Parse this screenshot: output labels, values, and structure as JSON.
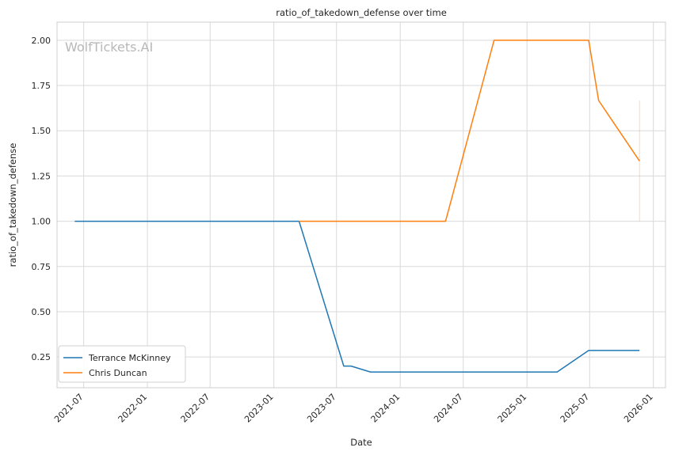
{
  "chart_data": {
    "type": "line",
    "title": "ratio_of_takedown_defense over time",
    "xlabel": "Date",
    "ylabel": "ratio_of_takedown_defense",
    "watermark": "WolfTickets.AI",
    "x_ticks": [
      "2021-07",
      "2022-01",
      "2022-07",
      "2023-01",
      "2023-07",
      "2024-01",
      "2024-07",
      "2025-01",
      "2025-07",
      "2026-01"
    ],
    "y_ticks": [
      "0.25",
      "0.50",
      "0.75",
      "1.00",
      "1.25",
      "1.50",
      "1.75",
      "2.00"
    ],
    "xlim": [
      "2021-04-15",
      "2026-02-05"
    ],
    "ylim": [
      0.08,
      2.1
    ],
    "grid": true,
    "legend_position": "lower-left",
    "series": [
      {
        "name": "Terrance McKinney",
        "color": "#1f77b4",
        "points": [
          {
            "x": "2021-06-05",
            "y": 1.0
          },
          {
            "x": "2023-03-15",
            "y": 1.0
          },
          {
            "x": "2023-07-22",
            "y": 0.2
          },
          {
            "x": "2023-08-12",
            "y": 0.2
          },
          {
            "x": "2023-10-07",
            "y": 0.167
          },
          {
            "x": "2025-03-29",
            "y": 0.167
          },
          {
            "x": "2025-06-28",
            "y": 0.286
          },
          {
            "x": "2025-11-22",
            "y": 0.286
          }
        ]
      },
      {
        "name": "Chris Duncan",
        "color": "#ff7f0e",
        "points": [
          {
            "x": "2023-03-15",
            "y": 1.0
          },
          {
            "x": "2024-05-11",
            "y": 1.0
          },
          {
            "x": "2024-09-28",
            "y": 2.0
          },
          {
            "x": "2025-06-28",
            "y": 2.0
          },
          {
            "x": "2025-07-27",
            "y": 1.667
          },
          {
            "x": "2025-11-22",
            "y": 1.333
          }
        ],
        "band": {
          "x": "2025-11-22",
          "y_low": 1.0,
          "y_high": 1.667
        }
      }
    ]
  }
}
